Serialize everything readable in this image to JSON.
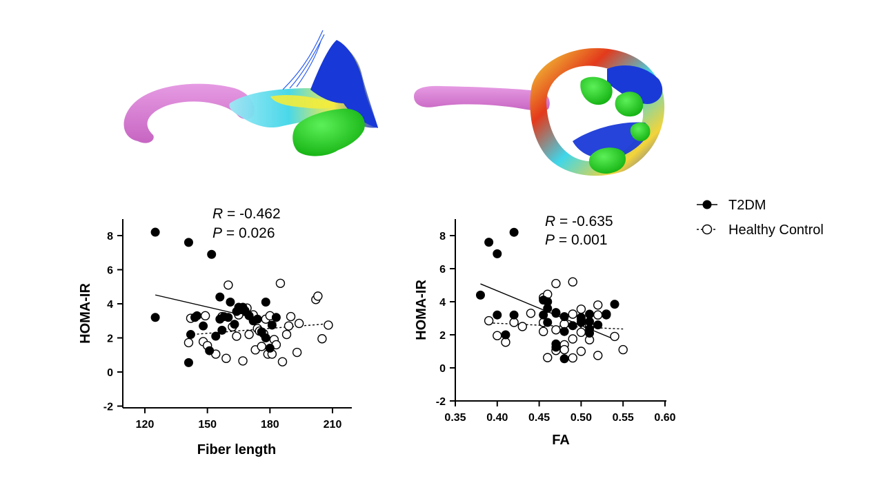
{
  "chart_data": [
    {
      "type": "scatter",
      "xlabel": "Fiber length",
      "ylabel": "HOMA-IR",
      "xlim": [
        110,
        220
      ],
      "ylim": [
        -2,
        9
      ],
      "xticks": [
        "120",
        "150",
        "180",
        "210"
      ],
      "yticks": [
        "-2",
        "0",
        "2",
        "4",
        "6",
        "8"
      ],
      "stats": {
        "r_label": "R",
        "r_value": " = -0.462",
        "p_label": "P",
        "p_value": " = 0.026"
      },
      "series": [
        {
          "name": "T2DM",
          "marker": "filled",
          "points": [
            [
              125,
              8.2
            ],
            [
              141,
              7.6
            ],
            [
              152,
              6.9
            ],
            [
              125,
              3.2
            ],
            [
              141,
              0.55
            ],
            [
              142,
              2.2
            ],
            [
              144,
              3.2
            ],
            [
              148,
              2.7
            ],
            [
              151,
              1.25
            ],
            [
              154,
              2.1
            ],
            [
              156,
              3.1
            ],
            [
              156,
              4.4
            ],
            [
              157,
              2.45
            ],
            [
              158,
              3.25
            ],
            [
              160,
              3.2
            ],
            [
              161,
              4.1
            ],
            [
              163,
              2.8
            ],
            [
              164,
              3.55
            ],
            [
              165,
              3.8
            ],
            [
              166,
              3.65
            ],
            [
              167,
              3.8
            ],
            [
              168,
              3.6
            ],
            [
              170,
              3.3
            ],
            [
              172,
              3.0
            ],
            [
              174,
              3.1
            ],
            [
              176,
              2.35
            ],
            [
              178,
              4.1
            ],
            [
              178,
              2.0
            ],
            [
              180,
              1.4
            ],
            [
              181,
              2.75
            ],
            [
              183,
              3.2
            ],
            [
              145,
              3.3
            ]
          ],
          "trend": [
            [
              125,
              4.52
            ],
            [
              183,
              2.88
            ]
          ]
        },
        {
          "name": "Healthy Control",
          "marker": "open",
          "points": [
            [
              142,
              3.15
            ],
            [
              141,
              1.72
            ],
            [
              148,
              1.78
            ],
            [
              149,
              3.3
            ],
            [
              150,
              1.55
            ],
            [
              154,
              1.05
            ],
            [
              157,
              3.25
            ],
            [
              159,
              0.8
            ],
            [
              160,
              5.1
            ],
            [
              162,
              2.65
            ],
            [
              164,
              2.1
            ],
            [
              165,
              3.35
            ],
            [
              167,
              0.65
            ],
            [
              168,
              3.6
            ],
            [
              169,
              3.75
            ],
            [
              170,
              2.2
            ],
            [
              172,
              3.35
            ],
            [
              173,
              1.3
            ],
            [
              174,
              2.55
            ],
            [
              175,
              2.4
            ],
            [
              176,
              1.5
            ],
            [
              177,
              2.25
            ],
            [
              178,
              3.1
            ],
            [
              179,
              1.05
            ],
            [
              180,
              3.3
            ],
            [
              181,
              1.05
            ],
            [
              182,
              1.9
            ],
            [
              183,
              1.6
            ],
            [
              185,
              5.2
            ],
            [
              186,
              0.6
            ],
            [
              188,
              2.2
            ],
            [
              189,
              2.7
            ],
            [
              190,
              3.25
            ],
            [
              193,
              1.15
            ],
            [
              194,
              2.85
            ],
            [
              202,
              4.25
            ],
            [
              203,
              4.45
            ],
            [
              205,
              1.95
            ],
            [
              208,
              2.75
            ]
          ],
          "trend": [
            [
              145,
              2.22
            ],
            [
              208,
              2.83
            ]
          ]
        }
      ]
    },
    {
      "type": "scatter",
      "xlabel": "FA",
      "ylabel": "HOMA-IR",
      "xlim": [
        0.35,
        0.6
      ],
      "ylim": [
        -2,
        9
      ],
      "xticks": [
        "0.35",
        "0.40",
        "0.45",
        "0.50",
        "0.55",
        "0.60"
      ],
      "yticks": [
        "-2",
        "0",
        "2",
        "4",
        "6",
        "8"
      ],
      "stats": {
        "r_label": "R",
        "r_value": " = -0.635",
        "p_label": "P",
        "p_value": " = 0.001"
      },
      "series": [
        {
          "name": "T2DM",
          "marker": "filled",
          "points": [
            [
              0.39,
              7.6
            ],
            [
              0.4,
              6.9
            ],
            [
              0.42,
              8.2
            ],
            [
              0.38,
              4.4
            ],
            [
              0.4,
              3.2
            ],
            [
              0.41,
              2.0
            ],
            [
              0.42,
              3.2
            ],
            [
              0.455,
              4.1
            ],
            [
              0.455,
              3.2
            ],
            [
              0.46,
              3.6
            ],
            [
              0.46,
              4.0
            ],
            [
              0.46,
              2.75
            ],
            [
              0.47,
              3.35
            ],
            [
              0.47,
              1.45
            ],
            [
              0.47,
              1.25
            ],
            [
              0.48,
              2.2
            ],
            [
              0.48,
              3.1
            ],
            [
              0.48,
              0.55
            ],
            [
              0.49,
              2.55
            ],
            [
              0.5,
              2.75
            ],
            [
              0.5,
              2.95
            ],
            [
              0.5,
              3.05
            ],
            [
              0.51,
              3.25
            ],
            [
              0.51,
              2.8
            ],
            [
              0.51,
              2.35
            ],
            [
              0.51,
              2.1
            ],
            [
              0.52,
              2.6
            ],
            [
              0.53,
              3.2
            ],
            [
              0.54,
              3.85
            ],
            [
              0.47,
              3.3
            ]
          ],
          "trend": [
            [
              0.38,
              5.08
            ],
            [
              0.54,
              1.72
            ]
          ]
        },
        {
          "name": "Healthy Control",
          "marker": "open",
          "points": [
            [
              0.39,
              2.85
            ],
            [
              0.4,
              1.95
            ],
            [
              0.41,
              1.55
            ],
            [
              0.42,
              2.75
            ],
            [
              0.43,
              2.5
            ],
            [
              0.44,
              3.3
            ],
            [
              0.455,
              2.75
            ],
            [
              0.455,
              4.25
            ],
            [
              0.455,
              2.2
            ],
            [
              0.46,
              0.62
            ],
            [
              0.46,
              4.45
            ],
            [
              0.47,
              1.05
            ],
            [
              0.47,
              5.1
            ],
            [
              0.47,
              2.3
            ],
            [
              0.48,
              1.4
            ],
            [
              0.48,
              1.1
            ],
            [
              0.48,
              2.65
            ],
            [
              0.49,
              3.25
            ],
            [
              0.49,
              1.75
            ],
            [
              0.49,
              0.6
            ],
            [
              0.49,
              5.2
            ],
            [
              0.5,
              3.55
            ],
            [
              0.5,
              2.15
            ],
            [
              0.5,
              1.0
            ],
            [
              0.51,
              1.7
            ],
            [
              0.51,
              2.55
            ],
            [
              0.52,
              3.8
            ],
            [
              0.52,
              3.2
            ],
            [
              0.52,
              0.75
            ],
            [
              0.53,
              3.25
            ],
            [
              0.54,
              1.9
            ],
            [
              0.55,
              1.1
            ]
          ],
          "trend": [
            [
              0.39,
              2.72
            ],
            [
              0.55,
              2.35
            ]
          ]
        }
      ]
    }
  ],
  "legend": {
    "items": [
      {
        "name": "T2DM",
        "marker": "filled",
        "line": "solid"
      },
      {
        "name": "Healthy Control",
        "marker": "open",
        "line": "dashed"
      }
    ],
    "placement": "top-right"
  },
  "colors": {
    "tract_purple": "#d97bd3",
    "tract_green": "#22d61e",
    "fiber_blue": "#1230d8",
    "fiber_cyan": "#3fd8ea",
    "fiber_yellow": "#f2ee3a",
    "fiber_red": "#e3231c"
  }
}
